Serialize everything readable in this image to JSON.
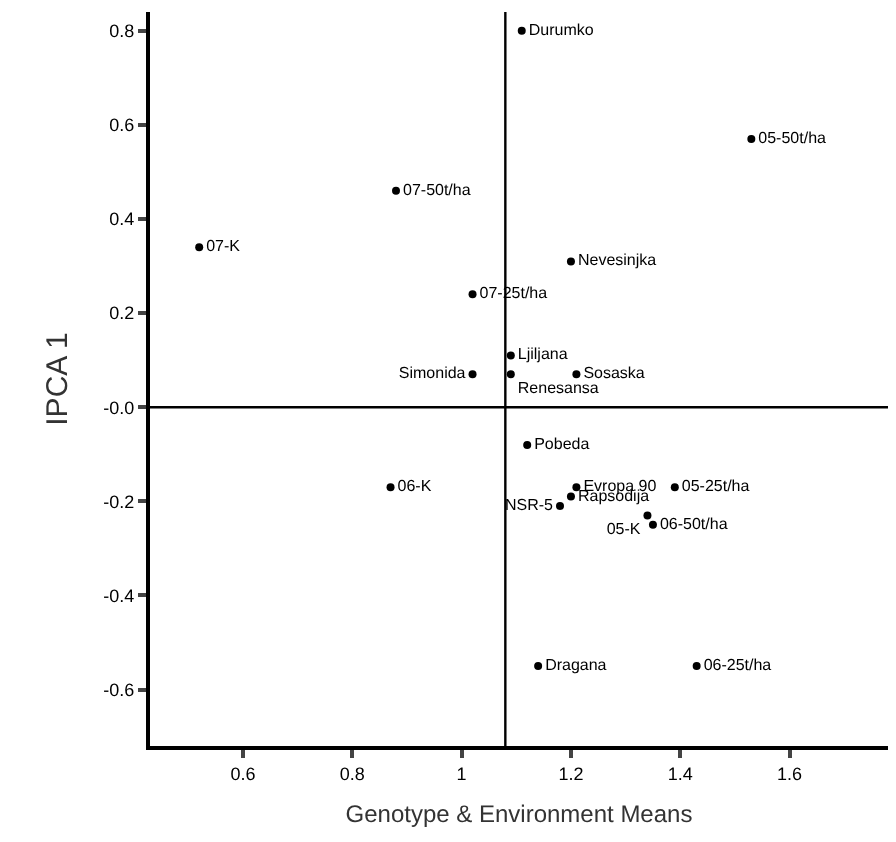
{
  "chart_data": {
    "type": "scatter",
    "xlabel": "Genotype & Environment Means",
    "ylabel": "IPCA 1",
    "xlim": [
      0.43,
      1.78
    ],
    "ylim": [
      -0.72,
      0.84
    ],
    "xticks": [
      0.6,
      0.8,
      1.0,
      1.2,
      1.4,
      1.6
    ],
    "yticks": [
      0.8,
      0.6,
      0.4,
      0.2,
      {
        "value": 0,
        "label": "-0.0"
      },
      -0.2,
      -0.4,
      -0.6
    ],
    "marker": "circle",
    "legend": false,
    "grid": false,
    "ref_lines": [
      {
        "axis": "x",
        "value": 1.08,
        "color": "#000000"
      },
      {
        "axis": "y",
        "value": 0,
        "color": "#000000"
      }
    ],
    "series": [
      {
        "name": "Durumko",
        "color": "#000000",
        "x": [
          1.11
        ],
        "values": [
          0.8
        ]
      },
      {
        "name": "05-50t/ha",
        "color": "#000000",
        "x": [
          1.53
        ],
        "values": [
          0.57
        ]
      },
      {
        "name": "07-50t/ha",
        "color": "#000000",
        "x": [
          0.88
        ],
        "values": [
          0.46
        ]
      },
      {
        "name": "07-K",
        "color": "#000000",
        "x": [
          0.52
        ],
        "values": [
          0.34
        ]
      },
      {
        "name": "Nevesinjka",
        "color": "#000000",
        "x": [
          1.2
        ],
        "values": [
          0.31
        ]
      },
      {
        "name": "07-25t/ha",
        "color": "#000000",
        "x": [
          1.02
        ],
        "values": [
          0.24
        ]
      },
      {
        "name": "Ljiljana",
        "color": "#000000",
        "x": [
          1.09
        ],
        "values": [
          0.11
        ]
      },
      {
        "name": "Simonida",
        "color": "#000000",
        "x": [
          1.02
        ],
        "values": [
          0.07
        ]
      },
      {
        "name": "Renesansa",
        "color": "#000000",
        "x": [
          1.09
        ],
        "values": [
          0.07
        ]
      },
      {
        "name": "Sosaska",
        "color": "#000000",
        "x": [
          1.21
        ],
        "values": [
          0.07
        ]
      },
      {
        "name": "Pobeda",
        "color": "#000000",
        "x": [
          1.12
        ],
        "values": [
          -0.08
        ]
      },
      {
        "name": "06-K",
        "color": "#000000",
        "x": [
          0.87
        ],
        "values": [
          -0.17
        ]
      },
      {
        "name": "Evropa 90",
        "color": "#000000",
        "x": [
          1.21
        ],
        "values": [
          -0.17
        ]
      },
      {
        "name": "05-25t/ha",
        "color": "#000000",
        "x": [
          1.39
        ],
        "values": [
          -0.17
        ]
      },
      {
        "name": "Rapsodija",
        "color": "#000000",
        "x": [
          1.2
        ],
        "values": [
          -0.19
        ]
      },
      {
        "name": "NSR-5",
        "color": "#000000",
        "x": [
          1.18
        ],
        "values": [
          -0.21
        ]
      },
      {
        "name": "05-K",
        "color": "#000000",
        "x": [
          1.34
        ],
        "values": [
          -0.23
        ]
      },
      {
        "name": "06-50t/ha",
        "color": "#000000",
        "x": [
          1.35
        ],
        "values": [
          -0.25
        ]
      },
      {
        "name": "Dragana",
        "color": "#000000",
        "x": [
          1.14
        ],
        "values": [
          -0.55
        ]
      },
      {
        "name": "06-25t/ha",
        "color": "#000000",
        "x": [
          1.43
        ],
        "values": [
          -0.55
        ]
      }
    ]
  }
}
